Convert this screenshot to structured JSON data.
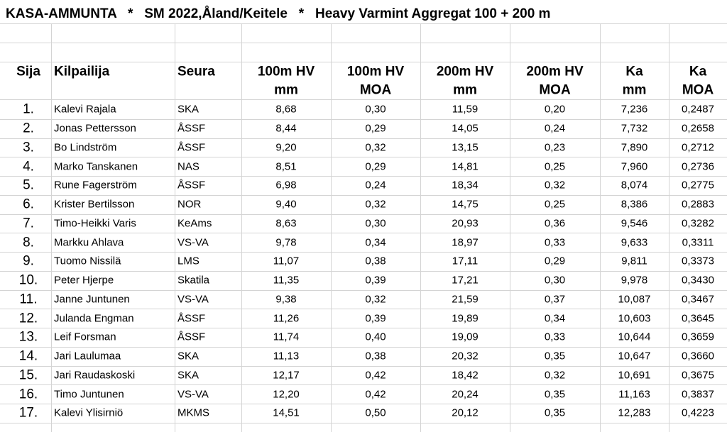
{
  "title": "KASA-AMMUNTA   *   SM 2022,Åland/Keitele   *   Heavy Varmint Aggregat 100 + 200 m",
  "columns": [
    {
      "title": "Sija"
    },
    {
      "title": "Kilpailija"
    },
    {
      "title": "Seura"
    },
    {
      "title": "100m HV",
      "unit": "mm"
    },
    {
      "title": "100m HV",
      "unit": "MOA"
    },
    {
      "title": "200m HV",
      "unit": "mm"
    },
    {
      "title": "200m HV",
      "unit": "MOA"
    },
    {
      "title": "Ka",
      "unit": "mm"
    },
    {
      "title": "Ka",
      "unit": "MOA"
    }
  ],
  "rows": [
    [
      "1.",
      "Kalevi Rajala",
      "SKA",
      "8,68",
      "0,30",
      "11,59",
      "0,20",
      "7,236",
      "0,2487"
    ],
    [
      "2.",
      "Jonas Pettersson",
      "ÅSSF",
      "8,44",
      "0,29",
      "14,05",
      "0,24",
      "7,732",
      "0,2658"
    ],
    [
      "3.",
      "Bo Lindström",
      "ÅSSF",
      "9,20",
      "0,32",
      "13,15",
      "0,23",
      "7,890",
      "0,2712"
    ],
    [
      "4.",
      "Marko Tanskanen",
      "NAS",
      "8,51",
      "0,29",
      "14,81",
      "0,25",
      "7,960",
      "0,2736"
    ],
    [
      "5.",
      "Rune Fagerström",
      "ÅSSF",
      "6,98",
      "0,24",
      "18,34",
      "0,32",
      "8,074",
      "0,2775"
    ],
    [
      "6.",
      "Krister Bertilsson",
      "NOR",
      "9,40",
      "0,32",
      "14,75",
      "0,25",
      "8,386",
      "0,2883"
    ],
    [
      "7.",
      "Timo-Heikki Varis",
      "KeAms",
      "8,63",
      "0,30",
      "20,93",
      "0,36",
      "9,546",
      "0,3282"
    ],
    [
      "8.",
      "Markku Ahlava",
      "VS-VA",
      "9,78",
      "0,34",
      "18,97",
      "0,33",
      "9,633",
      "0,3311"
    ],
    [
      "9.",
      "Tuomo Nissilä",
      "LMS",
      "11,07",
      "0,38",
      "17,11",
      "0,29",
      "9,811",
      "0,3373"
    ],
    [
      "10.",
      "Peter Hjerpe",
      "Skatila",
      "11,35",
      "0,39",
      "17,21",
      "0,30",
      "9,978",
      "0,3430"
    ],
    [
      "11.",
      "Janne Juntunen",
      "VS-VA",
      "9,38",
      "0,32",
      "21,59",
      "0,37",
      "10,087",
      "0,3467"
    ],
    [
      "12.",
      "Julanda Engman",
      "ÅSSF",
      "11,26",
      "0,39",
      "19,89",
      "0,34",
      "10,603",
      "0,3645"
    ],
    [
      "13.",
      "Leif Forsman",
      "ÅSSF",
      "11,74",
      "0,40",
      "19,09",
      "0,33",
      "10,644",
      "0,3659"
    ],
    [
      "14.",
      "Jari Laulumaa",
      "SKA",
      "11,13",
      "0,38",
      "20,32",
      "0,35",
      "10,647",
      "0,3660"
    ],
    [
      "15.",
      "Jari Raudaskoski",
      "SKA",
      "12,17",
      "0,42",
      "18,42",
      "0,32",
      "10,691",
      "0,3675"
    ],
    [
      "16.",
      "Timo Juntunen",
      "VS-VA",
      "12,20",
      "0,42",
      "20,24",
      "0,35",
      "11,163",
      "0,3837"
    ],
    [
      "17.",
      "Kalevi Ylisirniö",
      "MKMS",
      "14,51",
      "0,50",
      "20,12",
      "0,35",
      "12,283",
      "0,4223"
    ]
  ]
}
